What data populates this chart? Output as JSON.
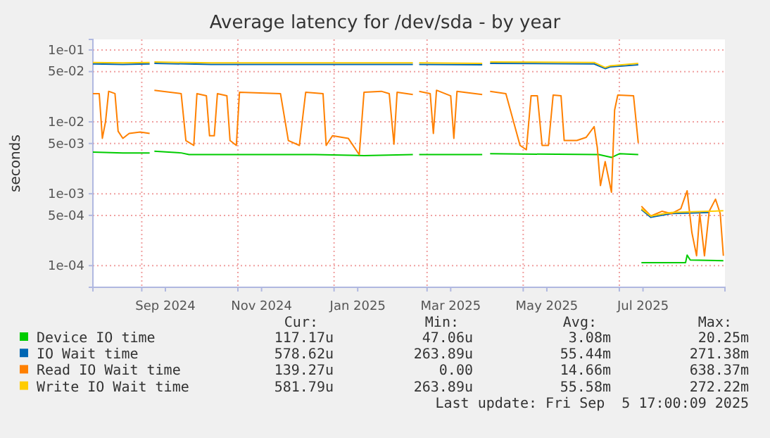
{
  "chart_data": {
    "type": "line",
    "title": "Average latency for /dev/sda - by year",
    "ylabel": "seconds",
    "log": "y",
    "grid": true,
    "legend": "bottom",
    "marker": "none",
    "line_style": "solid",
    "xlim": [
      "2024-08-01",
      "2025-09-06"
    ],
    "xticks": [
      {
        "value": "2024-09-01",
        "label": null
      },
      {
        "value": "2024-09-16",
        "label": "Sep 2024"
      },
      {
        "value": "2024-11-01",
        "label": null
      },
      {
        "value": "2024-11-16",
        "label": "Nov 2024"
      },
      {
        "value": "2025-01-01",
        "label": null
      },
      {
        "value": "2025-01-16",
        "label": "Jan 2025"
      },
      {
        "value": "2025-03-01",
        "label": null
      },
      {
        "value": "2025-03-16",
        "label": "Mar 2025"
      },
      {
        "value": "2025-05-01",
        "label": null
      },
      {
        "value": "2025-05-16",
        "label": "May 2025"
      },
      {
        "value": "2025-07-01",
        "label": null
      },
      {
        "value": "2025-07-16",
        "label": "Jul 2025"
      }
    ],
    "ylim": [
      5e-05,
      0.14
    ],
    "yticks": [
      {
        "value": 0.0001,
        "label": "1e-04"
      },
      {
        "value": 0.0005,
        "label": "5e-04"
      },
      {
        "value": 0.001,
        "label": "1e-03"
      },
      {
        "value": 0.005,
        "label": "5e-03"
      },
      {
        "value": 0.01,
        "label": "1e-02"
      },
      {
        "value": 0.05,
        "label": "5e-02"
      },
      {
        "value": 0.1,
        "label": "1e-01"
      }
    ],
    "series": [
      {
        "name": "Device IO time",
        "color": "#00cc00",
        "x": [
          "2024-08-01",
          "2024-08-20",
          "2024-09-06",
          "2024-09-07",
          "2024-09-09",
          "2024-09-26",
          "2024-10-01",
          "2024-11-15",
          "2024-12-20",
          "2025-01-20",
          "2025-02-20",
          "2025-02-22",
          "2025-02-24",
          "2025-04-05",
          "2025-04-07",
          "2025-04-10",
          "2025-06-18",
          "2025-06-26",
          "2025-07-01",
          "2025-07-13",
          "2025-07-14",
          "2025-07-15",
          "2025-08-01",
          "2025-08-12",
          "2025-08-13",
          "2025-08-15",
          "2025-09-05"
        ],
        "values": [
          0.0038,
          0.0037,
          0.0037,
          null,
          0.0039,
          0.0037,
          0.0035,
          0.0035,
          0.0035,
          0.0034,
          0.0035,
          null,
          0.0035,
          0.0035,
          null,
          0.0036,
          0.0035,
          0.0032,
          0.0036,
          0.0035,
          null,
          0.00011,
          0.00011,
          0.00011,
          0.00014,
          0.00012,
          0.000117
        ]
      },
      {
        "name": "IO Wait time",
        "color": "#0066b3",
        "x": [
          "2024-08-01",
          "2024-08-20",
          "2024-09-06",
          "2024-09-07",
          "2024-09-09",
          "2024-10-15",
          "2024-12-01",
          "2025-01-20",
          "2025-02-20",
          "2025-02-22",
          "2025-02-24",
          "2025-04-05",
          "2025-04-07",
          "2025-04-10",
          "2025-06-15",
          "2025-06-22",
          "2025-06-25",
          "2025-07-13",
          "2025-07-14",
          "2025-07-15",
          "2025-07-21",
          "2025-08-03",
          "2025-08-16",
          "2025-08-27"
        ],
        "values": [
          0.064,
          0.063,
          0.064,
          null,
          0.065,
          0.063,
          0.063,
          0.063,
          0.063,
          null,
          0.063,
          0.062,
          null,
          0.065,
          0.064,
          0.055,
          0.058,
          0.062,
          null,
          0.0006,
          0.00047,
          0.00053,
          0.00054,
          0.00055
        ]
      },
      {
        "name": "Read IO Wait time",
        "color": "#ff8000",
        "x": [
          "2024-08-01",
          "2024-08-05",
          "2024-08-07",
          "2024-08-09",
          "2024-08-11",
          "2024-08-15",
          "2024-08-17",
          "2024-08-20",
          "2024-08-24",
          "2024-08-31",
          "2024-09-06",
          "2024-09-07",
          "2024-09-09",
          "2024-09-26",
          "2024-09-29",
          "2024-10-04",
          "2024-10-06",
          "2024-10-12",
          "2024-10-14",
          "2024-10-17",
          "2024-10-19",
          "2024-10-25",
          "2024-10-27",
          "2024-10-31",
          "2024-11-02",
          "2024-11-28",
          "2024-12-03",
          "2024-12-10",
          "2024-12-14",
          "2024-12-25",
          "2024-12-27",
          "2024-12-31",
          "2025-01-10",
          "2025-01-17",
          "2025-01-20",
          "2025-01-31",
          "2025-02-05",
          "2025-02-08",
          "2025-02-10",
          "2025-02-20",
          "2025-02-22",
          "2025-02-24",
          "2025-03-03",
          "2025-03-05",
          "2025-03-07",
          "2025-03-16",
          "2025-03-18",
          "2025-03-20",
          "2025-04-05",
          "2025-04-07",
          "2025-04-10",
          "2025-04-20",
          "2025-04-29",
          "2025-05-03",
          "2025-05-06",
          "2025-05-10",
          "2025-05-13",
          "2025-05-17",
          "2025-05-20",
          "2025-05-25",
          "2025-05-27",
          "2025-06-04",
          "2025-06-10",
          "2025-06-15",
          "2025-06-17",
          "2025-06-19",
          "2025-06-22",
          "2025-06-26",
          "2025-06-28",
          "2025-06-30",
          "2025-07-10",
          "2025-07-13",
          "2025-07-14",
          "2025-07-15",
          "2025-07-21",
          "2025-07-28",
          "2025-08-03",
          "2025-08-09",
          "2025-08-13",
          "2025-08-16",
          "2025-08-19",
          "2025-08-21",
          "2025-08-24",
          "2025-08-27",
          "2025-08-31",
          "2025-09-03",
          "2025-09-05"
        ],
        "values": [
          0.0247,
          0.0247,
          0.0059,
          0.01,
          0.0266,
          0.0247,
          0.0074,
          0.0059,
          0.0069,
          0.0072,
          0.0069,
          null,
          0.0275,
          0.0247,
          0.0055,
          0.0047,
          0.0247,
          0.023,
          0.0064,
          0.0064,
          0.0247,
          0.023,
          0.0055,
          0.0047,
          0.0258,
          0.0247,
          0.0055,
          0.0047,
          0.0258,
          0.0247,
          0.0047,
          0.0064,
          0.0059,
          0.0035,
          0.0258,
          0.0266,
          0.0247,
          0.0049,
          0.0258,
          0.024,
          null,
          0.0266,
          0.0247,
          0.0069,
          0.0275,
          0.023,
          0.0059,
          0.0266,
          0.024,
          null,
          0.0266,
          0.0247,
          0.0047,
          0.0041,
          0.023,
          0.023,
          0.0047,
          0.0047,
          0.0236,
          0.023,
          0.0055,
          0.0055,
          0.0061,
          0.0086,
          0.0044,
          0.0013,
          0.0028,
          0.00105,
          0.0146,
          0.0236,
          0.023,
          0.0051,
          null,
          0.00067,
          0.00049,
          0.00057,
          0.00053,
          0.00062,
          0.0011,
          0.00029,
          0.000137,
          0.00053,
          0.000137,
          0.00057,
          0.00084,
          0.00053,
          0.000137
        ]
      },
      {
        "name": "Write IO Wait time",
        "color": "#ffcc00",
        "x": [
          "2024-08-01",
          "2024-08-20",
          "2024-09-06",
          "2024-09-07",
          "2024-09-09",
          "2024-10-15",
          "2024-12-01",
          "2025-01-20",
          "2025-02-20",
          "2025-02-22",
          "2025-02-24",
          "2025-04-05",
          "2025-04-07",
          "2025-04-10",
          "2025-06-15",
          "2025-06-22",
          "2025-06-25",
          "2025-07-13",
          "2025-07-14",
          "2025-07-15",
          "2025-07-21",
          "2025-08-03",
          "2025-08-16",
          "2025-08-27",
          "2025-09-05"
        ],
        "values": [
          0.067,
          0.066,
          0.067,
          null,
          0.068,
          0.066,
          0.066,
          0.066,
          0.066,
          null,
          0.066,
          0.065,
          null,
          0.068,
          0.067,
          0.057,
          0.06,
          0.065,
          null,
          0.00062,
          0.00049,
          0.00055,
          0.00056,
          0.00057,
          0.00058
        ]
      }
    ],
    "annotations": [
      "Cur:",
      "Min:",
      "Avg:",
      "Max:",
      "117.17u",
      "47.06u",
      "3.08m",
      "20.25m",
      "578.62u",
      "263.89u",
      "55.44m",
      "271.38m",
      "139.27u",
      "0.00",
      "14.66m",
      "638.37m",
      "581.79u",
      "263.89u",
      "55.58m",
      "272.22m",
      "Last update: Fri Sep  5 17:00:09 2025"
    ]
  }
}
